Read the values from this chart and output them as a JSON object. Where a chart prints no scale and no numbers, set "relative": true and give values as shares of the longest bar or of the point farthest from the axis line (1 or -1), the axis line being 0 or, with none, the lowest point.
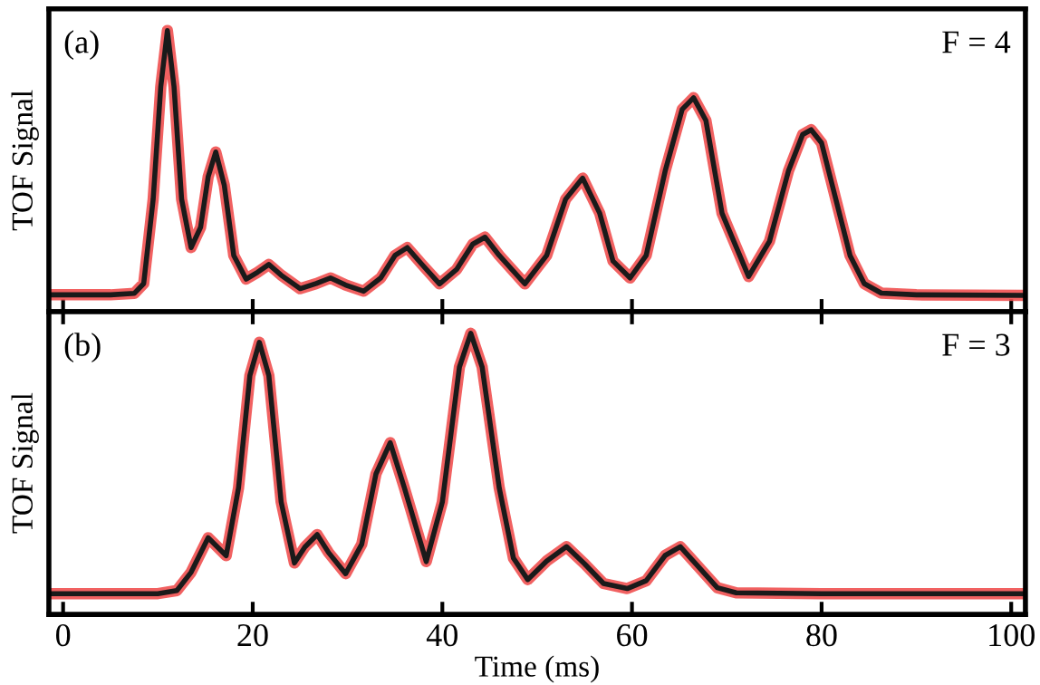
{
  "chart_data": [
    {
      "type": "line",
      "relative": true,
      "ylabel": "TOF Signal",
      "annotations": [
        "(a)",
        "F = 4"
      ],
      "xlim": [
        -1.5,
        101.5
      ],
      "xticks": [
        0,
        20,
        40,
        60,
        80,
        100
      ],
      "tick_labels": false,
      "grid": false,
      "legend": false,
      "x": [
        -1.5,
        5,
        7.5,
        8.5,
        9.5,
        10.3,
        11,
        11.7,
        12.5,
        13.5,
        14.5,
        15.3,
        16.1,
        17,
        18,
        19.3,
        20.5,
        21.7,
        23,
        25,
        26.7,
        28.2,
        29.8,
        31.7,
        33.5,
        35,
        36.3,
        37.8,
        39.7,
        41.5,
        43.2,
        44.5,
        46,
        48.7,
        51,
        53,
        54.8,
        56.6,
        58,
        59.8,
        61.5,
        63.5,
        65.3,
        66.5,
        67.8,
        69.5,
        72.3,
        74.5,
        76.5,
        78,
        78.9,
        80,
        81.5,
        83,
        84.5,
        86.3,
        90,
        101.5
      ],
      "series": [
        {
          "color": "#f05050",
          "values": [
            0.06,
            0.06,
            0.065,
            0.1,
            0.4,
            0.8,
            1.0,
            0.8,
            0.4,
            0.228,
            0.3,
            0.48,
            0.568,
            0.45,
            0.2,
            0.116,
            0.14,
            0.168,
            0.13,
            0.082,
            0.1,
            0.12,
            0.095,
            0.073,
            0.12,
            0.2,
            0.228,
            0.17,
            0.099,
            0.15,
            0.24,
            0.265,
            0.2,
            0.099,
            0.2,
            0.4,
            0.475,
            0.35,
            0.18,
            0.12,
            0.2,
            0.5,
            0.72,
            0.761,
            0.68,
            0.35,
            0.125,
            0.25,
            0.5,
            0.63,
            0.647,
            0.6,
            0.4,
            0.2,
            0.1,
            0.066,
            0.06,
            0.058
          ]
        },
        {
          "color": "#1a1a1a",
          "values": [
            0.06,
            0.06,
            0.065,
            0.1,
            0.4,
            0.8,
            1.0,
            0.8,
            0.4,
            0.228,
            0.3,
            0.48,
            0.568,
            0.45,
            0.2,
            0.116,
            0.14,
            0.168,
            0.13,
            0.082,
            0.1,
            0.12,
            0.095,
            0.073,
            0.12,
            0.2,
            0.228,
            0.17,
            0.099,
            0.15,
            0.24,
            0.265,
            0.2,
            0.099,
            0.2,
            0.4,
            0.475,
            0.35,
            0.18,
            0.12,
            0.2,
            0.5,
            0.72,
            0.761,
            0.68,
            0.35,
            0.125,
            0.25,
            0.5,
            0.63,
            0.647,
            0.6,
            0.4,
            0.2,
            0.1,
            0.066,
            0.06,
            0.058
          ]
        }
      ]
    },
    {
      "type": "line",
      "relative": true,
      "ylabel": "TOF Signal",
      "xlabel": "Time (ms)",
      "annotations": [
        "(b)",
        "F = 3"
      ],
      "xlim": [
        -1.5,
        101.5
      ],
      "xticks": [
        0,
        20,
        40,
        60,
        80,
        100
      ],
      "tick_labels": "x",
      "grid": false,
      "legend": false,
      "x": [
        -1.5,
        10,
        12,
        13.5,
        15.3,
        17.2,
        18.5,
        19.7,
        20.7,
        21.7,
        23,
        24.4,
        25.5,
        26.8,
        28,
        29.8,
        31.5,
        33,
        34.5,
        36,
        38.3,
        40,
        41.8,
        43,
        44.2,
        46,
        47.5,
        49,
        51,
        53.1,
        55,
        57,
        59.5,
        61.5,
        63.5,
        65.1,
        67,
        69,
        71,
        80,
        101.5
      ],
      "series": [
        {
          "color": "#f05050",
          "values": [
            0.074,
            0.074,
            0.085,
            0.15,
            0.273,
            0.209,
            0.45,
            0.85,
            0.968,
            0.85,
            0.4,
            0.183,
            0.24,
            0.284,
            0.22,
            0.145,
            0.25,
            0.5,
            0.611,
            0.45,
            0.188,
            0.4,
            0.88,
            1.0,
            0.88,
            0.45,
            0.2,
            0.124,
            0.19,
            0.241,
            0.18,
            0.11,
            0.092,
            0.12,
            0.21,
            0.241,
            0.17,
            0.095,
            0.077,
            0.074,
            0.074
          ]
        },
        {
          "color": "#1a1a1a",
          "values": [
            0.074,
            0.074,
            0.085,
            0.15,
            0.273,
            0.209,
            0.45,
            0.85,
            0.968,
            0.85,
            0.4,
            0.183,
            0.24,
            0.284,
            0.22,
            0.145,
            0.25,
            0.5,
            0.611,
            0.45,
            0.188,
            0.4,
            0.88,
            1.0,
            0.88,
            0.45,
            0.2,
            0.124,
            0.19,
            0.241,
            0.18,
            0.11,
            0.092,
            0.12,
            0.21,
            0.241,
            0.17,
            0.095,
            0.077,
            0.074,
            0.074
          ]
        }
      ]
    }
  ]
}
